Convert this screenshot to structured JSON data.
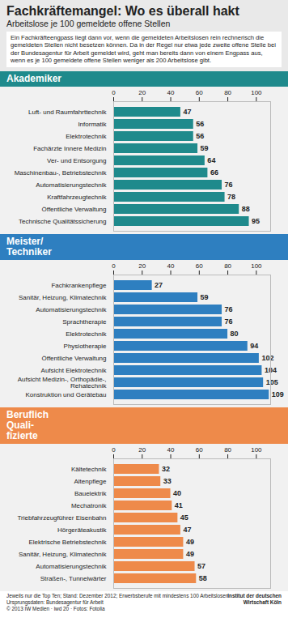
{
  "title": "Fachkräftemangel: Wo es überall hakt",
  "subtitle": "Arbeitslose je 100 gemeldete offene Stellen",
  "intro": "Ein Fachkräfteengpass liegt dann vor, wenn die gemeldeten Arbeitslosen rein rechnerisch die gemeldeten Stellen nicht besetzen können. Da in der Regel nur etwa jede zweite offene Stelle bei der Bundesagentur für Arbeit gemeldet wird, geht man bereits dann von einem Engpass aus, wenn es je 100 gemeldete offene Stellen weniger als 200 Arbeitslose gibt.",
  "footnotes": [
    "Jeweils nur die Top Ten; Stand: Dezember 2012; Erwerbsberufe mit mindestens 100 Arbeitslosen",
    "Ursprungsdaten: Bundesagentur für Arbeit"
  ],
  "credit": "© 2013 IW Medien · iwd 20 · Fotos: Fotolia",
  "source": "Institut der deutschen Wirtschaft Köln",
  "chart_data": [
    {
      "type": "bar",
      "orientation": "horizontal",
      "title": "Akademiker",
      "categories": [
        "Luft- und Raumfahrttechnik",
        "Informatik",
        "Elektrotechnik",
        "Fachärzte Innere Medizin",
        "Ver- und Entsorgung",
        "Maschinenbau-, Betriebstechnik",
        "Automatisierungstechnik",
        "Kraftfahrzeugtechnik",
        "Öffentliche Verwaltung",
        "Technische Qualitätssicherung"
      ],
      "values": [
        47,
        56,
        56,
        59,
        64,
        66,
        76,
        78,
        88,
        95
      ],
      "color": "#1f8a8c",
      "xlim": [
        0,
        110
      ],
      "xticks": [
        0,
        20,
        40,
        60,
        80,
        100
      ],
      "grid": false,
      "data_labels": true
    },
    {
      "type": "bar",
      "orientation": "horizontal",
      "title": "Meister/\nTechniker",
      "categories": [
        "Fachkrankenpflege",
        "Sanitär, Heizung, Klimatechnik",
        "Automatisierungstechnik",
        "Sprachtherapie",
        "Elektrotechnik",
        "Physiotherapie",
        "Öffentliche Verwaltung",
        "Aufsicht Elektrotechnik",
        "Aufsicht Medizin-, Orthopädie-,\nRehatechnik",
        "Konstruktion und Gerätebau"
      ],
      "values": [
        27,
        59,
        76,
        76,
        80,
        94,
        102,
        104,
        105,
        109
      ],
      "color": "#2e7fc0",
      "xlim": [
        0,
        110
      ],
      "xticks": [
        0,
        20,
        40,
        60,
        80,
        100
      ],
      "grid": false,
      "data_labels": true
    },
    {
      "type": "bar",
      "orientation": "horizontal",
      "title": "Beruflich\nQuali-\nfizierte",
      "categories": [
        "Kältetechnik",
        "Altenpflege",
        "Bauelektrik",
        "Mechatronik",
        "Triebfahrzeugführer Eisenbahn",
        "Hörgeräteakustik",
        "Elektrische Betriebstechnik",
        "Sanitär, Heizung, Klimatechnik",
        "Automatisierungstechnik",
        "Straßen-, Tunnelwärter"
      ],
      "values": [
        32,
        33,
        40,
        41,
        45,
        47,
        49,
        49,
        57,
        58
      ],
      "color": "#ee8a4a",
      "xlim": [
        0,
        110
      ],
      "xticks": [
        0,
        20,
        40,
        60,
        80,
        100
      ],
      "grid": false,
      "data_labels": true
    }
  ]
}
